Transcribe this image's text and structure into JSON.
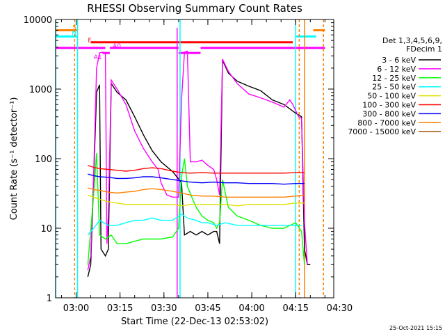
{
  "chart_data": {
    "type": "line",
    "title": "RHESSI Observing Summary Count Rates",
    "xlabel": "Start Time (22-Dec-13 02:53:02)",
    "ylabel": "Count Rate (s⁻¹ detector⁻¹)",
    "y_scale": "log",
    "ylim": [
      1,
      10000
    ],
    "y_ticks": [
      {
        "value": 1,
        "label": "1"
      },
      {
        "value": 10,
        "label": "10"
      },
      {
        "value": 100,
        "label": "100"
      },
      {
        "value": 1000,
        "label": "1000"
      },
      {
        "value": 10000,
        "label": "10000"
      }
    ],
    "xlim_minutes": [
      0,
      95
    ],
    "x_ticks": [
      {
        "t": 7,
        "label": "03:00"
      },
      {
        "t": 22,
        "label": "03:15"
      },
      {
        "t": 37,
        "label": "03:30"
      },
      {
        "t": 52,
        "label": "03:45"
      },
      {
        "t": 67,
        "label": "04:00"
      },
      {
        "t": 82,
        "label": "04:15"
      },
      {
        "t": 97,
        "label": "04:30"
      }
    ],
    "legend": {
      "title_lines": [
        "Det 1,3,4,5,6,9,",
        "FDecim 1"
      ],
      "placement": "right"
    },
    "series": [
      {
        "name": "3 - 6 keV",
        "color": "#000000",
        "points": [
          [
            11,
            2
          ],
          [
            12,
            3
          ],
          [
            13,
            50
          ],
          [
            14,
            900
          ],
          [
            15,
            1150
          ],
          [
            15.5,
            5
          ],
          [
            17,
            4
          ],
          [
            18,
            5
          ],
          [
            19,
            1200
          ],
          [
            21,
            900
          ],
          [
            24,
            700
          ],
          [
            27,
            400
          ],
          [
            30,
            220
          ],
          [
            33,
            130
          ],
          [
            36,
            90
          ],
          [
            40,
            65
          ],
          [
            43,
            45
          ],
          [
            44,
            8
          ],
          [
            46,
            9
          ],
          [
            48,
            8
          ],
          [
            50,
            9
          ],
          [
            52,
            8
          ],
          [
            54,
            9
          ],
          [
            55,
            9
          ],
          [
            56,
            6
          ],
          [
            57,
            2600
          ],
          [
            59,
            1700
          ],
          [
            62,
            1300
          ],
          [
            66,
            1100
          ],
          [
            70,
            950
          ],
          [
            74,
            700
          ],
          [
            78,
            600
          ],
          [
            82,
            450
          ],
          [
            84,
            400
          ],
          [
            85,
            5
          ],
          [
            86,
            3
          ],
          [
            87,
            3
          ]
        ]
      },
      {
        "name": "6 - 12 keV",
        "color": "#ff00ff",
        "points": [
          [
            11,
            2.5
          ],
          [
            12,
            4
          ],
          [
            13,
            60
          ],
          [
            14,
            2000
          ],
          [
            15,
            3300
          ],
          [
            16,
            3400
          ],
          [
            17,
            3300
          ],
          [
            17.5,
            6
          ],
          [
            18,
            15
          ],
          [
            19,
            1350
          ],
          [
            21,
            1000
          ],
          [
            24,
            600
          ],
          [
            27,
            250
          ],
          [
            30,
            140
          ],
          [
            33,
            90
          ],
          [
            35,
            70
          ],
          [
            36,
            45
          ],
          [
            38,
            30
          ],
          [
            40,
            28
          ],
          [
            42,
            28
          ],
          [
            43,
            700
          ],
          [
            44,
            3400
          ],
          [
            45,
            3500
          ],
          [
            46,
            90
          ],
          [
            48,
            90
          ],
          [
            50,
            95
          ],
          [
            52,
            80
          ],
          [
            54,
            70
          ],
          [
            55,
            50
          ],
          [
            56,
            30
          ],
          [
            57,
            2700
          ],
          [
            59,
            1800
          ],
          [
            62,
            1200
          ],
          [
            66,
            850
          ],
          [
            70,
            750
          ],
          [
            74,
            650
          ],
          [
            78,
            550
          ],
          [
            80,
            700
          ],
          [
            81,
            600
          ],
          [
            83,
            400
          ],
          [
            84,
            380
          ],
          [
            85,
            12
          ],
          [
            86,
            3
          ]
        ]
      },
      {
        "name": "12 - 25 keV",
        "color": "#00ff00",
        "points": [
          [
            11,
            3
          ],
          [
            13,
            30
          ],
          [
            14,
            120
          ],
          [
            15,
            8
          ],
          [
            17,
            7
          ],
          [
            19,
            8
          ],
          [
            21,
            6
          ],
          [
            24,
            6
          ],
          [
            27,
            6.5
          ],
          [
            30,
            7
          ],
          [
            33,
            7
          ],
          [
            36,
            7
          ],
          [
            40,
            7.5
          ],
          [
            42,
            10
          ],
          [
            43,
            55
          ],
          [
            44,
            100
          ],
          [
            45,
            40
          ],
          [
            47,
            25
          ],
          [
            48,
            20
          ],
          [
            50,
            15
          ],
          [
            52,
            13
          ],
          [
            54,
            12
          ],
          [
            55,
            10
          ],
          [
            56,
            12
          ],
          [
            57,
            50
          ],
          [
            59,
            20
          ],
          [
            62,
            15
          ],
          [
            66,
            13
          ],
          [
            70,
            11
          ],
          [
            74,
            10
          ],
          [
            78,
            10
          ],
          [
            82,
            12
          ],
          [
            84,
            9
          ],
          [
            85,
            3
          ]
        ]
      },
      {
        "name": "25 - 50 keV",
        "color": "#00ffff",
        "points": [
          [
            11,
            8
          ],
          [
            13,
            10
          ],
          [
            15,
            13
          ],
          [
            18,
            11
          ],
          [
            21,
            11
          ],
          [
            24,
            12
          ],
          [
            27,
            13
          ],
          [
            30,
            13
          ],
          [
            33,
            14
          ],
          [
            36,
            13
          ],
          [
            40,
            13
          ],
          [
            43,
            16
          ],
          [
            45,
            14
          ],
          [
            48,
            13
          ],
          [
            50,
            12
          ],
          [
            52,
            12
          ],
          [
            55,
            11
          ],
          [
            58,
            12
          ],
          [
            62,
            11
          ],
          [
            66,
            11
          ],
          [
            70,
            11
          ],
          [
            74,
            11
          ],
          [
            78,
            11
          ],
          [
            82,
            11
          ],
          [
            84,
            11
          ]
        ]
      },
      {
        "name": "50 - 100 keV",
        "color": "#e0e000",
        "points": [
          [
            11,
            30
          ],
          [
            13,
            28
          ],
          [
            15,
            26
          ],
          [
            18,
            24
          ],
          [
            21,
            23
          ],
          [
            24,
            22
          ],
          [
            27,
            22
          ],
          [
            30,
            22
          ],
          [
            33,
            22
          ],
          [
            36,
            22
          ],
          [
            40,
            22
          ],
          [
            43,
            21
          ],
          [
            46,
            22
          ],
          [
            50,
            22
          ],
          [
            54,
            22
          ],
          [
            58,
            22
          ],
          [
            62,
            21
          ],
          [
            66,
            22
          ],
          [
            70,
            22
          ],
          [
            74,
            22
          ],
          [
            78,
            22
          ],
          [
            82,
            23
          ],
          [
            85,
            23
          ]
        ]
      },
      {
        "name": "100 - 300 keV",
        "color": "#ff0000",
        "points": [
          [
            11,
            80
          ],
          [
            13,
            75
          ],
          [
            15,
            72
          ],
          [
            18,
            70
          ],
          [
            21,
            68
          ],
          [
            24,
            66
          ],
          [
            27,
            68
          ],
          [
            30,
            72
          ],
          [
            33,
            74
          ],
          [
            36,
            72
          ],
          [
            40,
            66
          ],
          [
            43,
            63
          ],
          [
            46,
            62
          ],
          [
            50,
            63
          ],
          [
            54,
            62
          ],
          [
            58,
            62
          ],
          [
            62,
            62
          ],
          [
            66,
            62
          ],
          [
            70,
            62
          ],
          [
            74,
            62
          ],
          [
            78,
            62
          ],
          [
            82,
            63
          ],
          [
            85,
            63
          ]
        ]
      },
      {
        "name": "300 - 800 keV",
        "color": "#0000ff",
        "points": [
          [
            11,
            60
          ],
          [
            13,
            57
          ],
          [
            15,
            55
          ],
          [
            18,
            54
          ],
          [
            21,
            52
          ],
          [
            24,
            52
          ],
          [
            27,
            53
          ],
          [
            30,
            55
          ],
          [
            33,
            55
          ],
          [
            36,
            53
          ],
          [
            40,
            50
          ],
          [
            43,
            48
          ],
          [
            46,
            46
          ],
          [
            50,
            45
          ],
          [
            54,
            46
          ],
          [
            58,
            45
          ],
          [
            62,
            45
          ],
          [
            66,
            44
          ],
          [
            70,
            44
          ],
          [
            74,
            44
          ],
          [
            78,
            43
          ],
          [
            82,
            44
          ],
          [
            85,
            44
          ]
        ]
      },
      {
        "name": "800 - 7000 keV",
        "color": "#ff8000",
        "points": [
          [
            11,
            38
          ],
          [
            13,
            36
          ],
          [
            15,
            35
          ],
          [
            18,
            33
          ],
          [
            21,
            32
          ],
          [
            24,
            33
          ],
          [
            27,
            34
          ],
          [
            30,
            36
          ],
          [
            33,
            37
          ],
          [
            36,
            36
          ],
          [
            40,
            34
          ],
          [
            43,
            32
          ],
          [
            46,
            30
          ],
          [
            50,
            29
          ],
          [
            54,
            29
          ],
          [
            58,
            28
          ],
          [
            62,
            28
          ],
          [
            66,
            28
          ],
          [
            70,
            28
          ],
          [
            74,
            28
          ],
          [
            78,
            28
          ],
          [
            82,
            29
          ],
          [
            85,
            30
          ]
        ]
      },
      {
        "name": "7000 - 15000 keV",
        "color": "#a05000",
        "points": []
      }
    ],
    "flag_lines": [
      {
        "label": "S",
        "color": "#ff8000",
        "level": 7000,
        "segments": [
          [
            0,
            7.5
          ],
          [
            88,
            92
          ]
        ]
      },
      {
        "label": "N",
        "color": "#00ffff",
        "level": 5700,
        "segments": [
          [
            0,
            7.5
          ],
          [
            82,
            89
          ]
        ]
      },
      {
        "label": "F",
        "color": "#ff0000",
        "level": 4700,
        "segments": [
          [
            12,
            81
          ]
        ]
      },
      {
        "label": "A1",
        "color": "#ff00ff",
        "level": 3300,
        "segments": [
          [
            16,
            18.5
          ],
          [
            42,
            49.5
          ]
        ]
      },
      {
        "label": "A0",
        "color": "#ff00ff",
        "level": 3900,
        "segments": [
          [
            0,
            17
          ],
          [
            18.5,
            42
          ],
          [
            49.5,
            92
          ]
        ]
      }
    ],
    "vlines": [
      {
        "t": 0,
        "color": "#00ffff",
        "dash": false
      },
      {
        "t": 6.5,
        "color": "#ff8000",
        "dash": true
      },
      {
        "t": 7.5,
        "color": "#00ffff",
        "dash": false
      },
      {
        "t": 41.5,
        "color": "#ff00ff",
        "dash": false
      },
      {
        "t": 42.5,
        "color": "#00ffff",
        "dash": false
      },
      {
        "t": 82,
        "color": "#00ffff",
        "dash": false
      },
      {
        "t": 83.2,
        "color": "#ff8000",
        "dash": true
      },
      {
        "t": 85,
        "color": "#ff8000",
        "dash": false
      },
      {
        "t": 91.5,
        "color": "#ff8000",
        "dash": true
      }
    ]
  },
  "footer": {
    "timestamp": "25-Oct-2021 15:15"
  }
}
